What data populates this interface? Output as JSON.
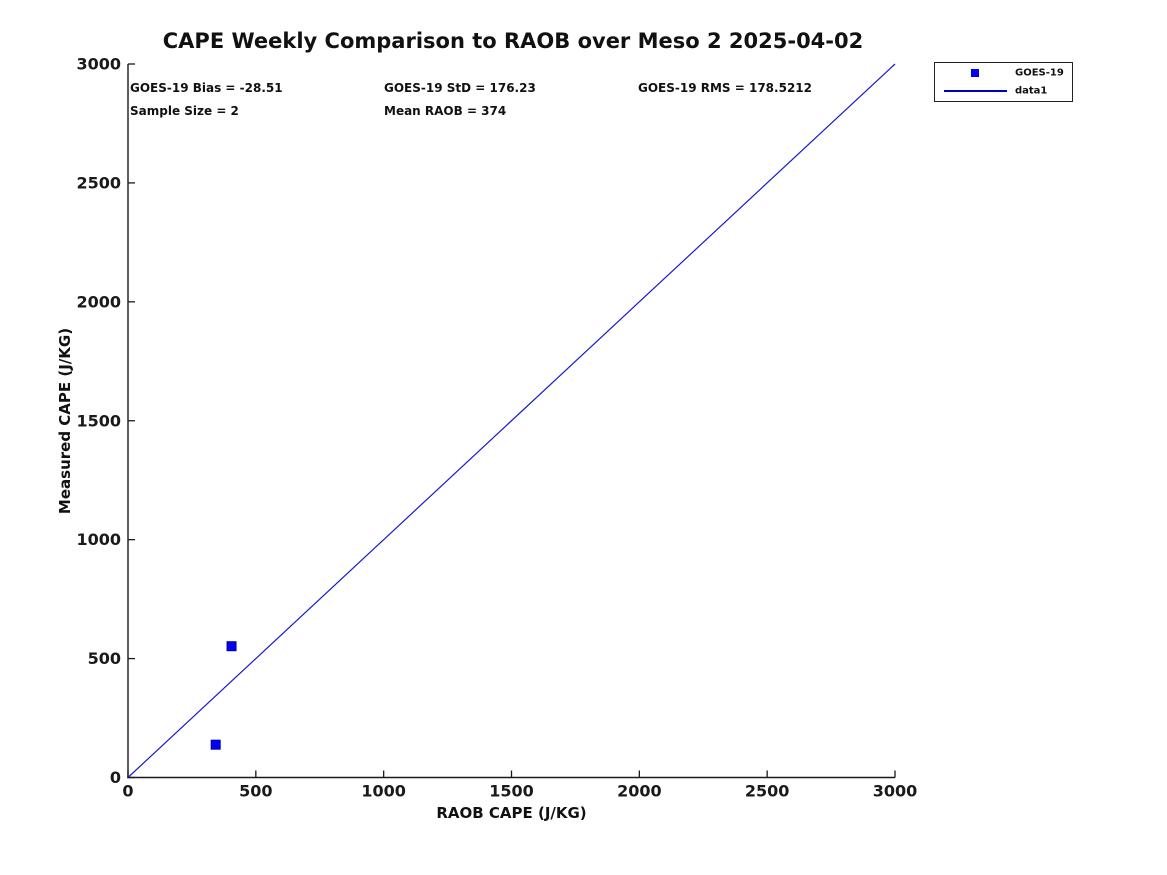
{
  "chart_data": {
    "type": "scatter",
    "title": "CAPE Weekly Comparison to RAOB over Meso 2 2025-04-02",
    "xlabel": "RAOB CAPE (J/KG)",
    "ylabel": "Measured CAPE (J/KG)",
    "xlim": [
      0,
      3000
    ],
    "ylim": [
      0,
      3000
    ],
    "x_ticks": [
      0,
      500,
      1000,
      1500,
      2000,
      2500,
      3000
    ],
    "y_ticks": [
      0,
      500,
      1000,
      1500,
      2000,
      2500,
      3000
    ],
    "grid": false,
    "annotations": [
      {
        "text": "GOES-19 Bias = -28.51",
        "row": 1,
        "col": 1
      },
      {
        "text": "GOES-19 StD = 176.23",
        "row": 1,
        "col": 2
      },
      {
        "text": "GOES-19 RMS = 178.5212",
        "row": 1,
        "col": 3
      },
      {
        "text": "Sample Size = 2",
        "row": 2,
        "col": 1
      },
      {
        "text": "Mean RAOB = 374",
        "row": 2,
        "col": 2
      }
    ],
    "stats": {
      "bias": -28.51,
      "std": 176.23,
      "rms": 178.5212,
      "sample_size": 2,
      "mean_raob": 374
    },
    "legend": {
      "position": "outside-top-right",
      "entries": [
        {
          "label": "GOES-19",
          "glyph": "square-marker",
          "color": "#0202f0"
        },
        {
          "label": "data1",
          "glyph": "line",
          "color": "#0000bb"
        }
      ]
    },
    "series": [
      {
        "name": "GOES-19",
        "type": "scatter",
        "marker": "square",
        "color": "#0202f0",
        "edge_color": "#0000aa",
        "points": [
          [
            405,
            552
          ],
          [
            343,
            138
          ]
        ]
      },
      {
        "name": "data1",
        "type": "line",
        "color": "#1818cc",
        "points": [
          [
            0,
            0
          ],
          [
            3000,
            3000
          ]
        ]
      }
    ],
    "colors": {
      "axis": "#1a1a1a",
      "text": "#111111",
      "marker_blue": "#0202f0",
      "line_blue": "#1818cc"
    }
  }
}
